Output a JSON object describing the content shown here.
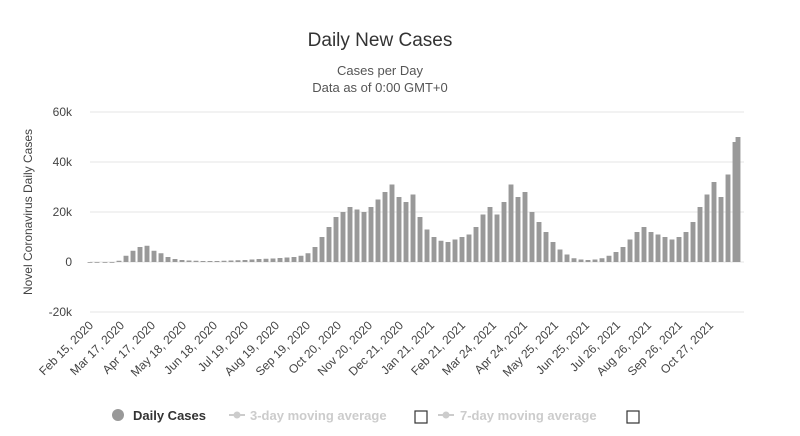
{
  "colors": {
    "bar": "#999999",
    "grid": "#e6e6e6",
    "x_axis": "#ccd6eb",
    "legend_active": "#333333",
    "legend_inactive": "#cccccc"
  },
  "chart_data": {
    "type": "bar",
    "title": "Daily New Cases",
    "subtitle_lines": [
      "Cases per Day",
      "Data as of 0:00 GMT+0"
    ],
    "ylabel": "Novel Coronavirus Daily Cases",
    "xlabel": "",
    "ylim": [
      -20000,
      60000
    ],
    "y_ticks": [
      60000,
      40000,
      20000,
      0,
      -20000
    ],
    "y_tick_labels": [
      "60k",
      "40k",
      "20k",
      "0",
      "-20k"
    ],
    "x_start": "2020-02-15",
    "x_end": "2021-11-30",
    "x_ticks": [
      "2020-02-15",
      "2020-03-17",
      "2020-04-17",
      "2020-05-18",
      "2020-06-18",
      "2020-07-19",
      "2020-08-19",
      "2020-09-19",
      "2020-10-20",
      "2020-11-20",
      "2020-12-21",
      "2021-01-21",
      "2021-02-21",
      "2021-03-24",
      "2021-04-24",
      "2021-05-25",
      "2021-06-25",
      "2021-07-26",
      "2021-08-26",
      "2021-09-26",
      "2021-10-27"
    ],
    "x_tick_labels": [
      "Feb 15, 2020",
      "Mar 17, 2020",
      "Apr 17, 2020",
      "May 18, 2020",
      "Jun 18, 2020",
      "Jul 19, 2020",
      "Aug 19, 2020",
      "Sep 19, 2020",
      "Oct 20, 2020",
      "Nov 20, 2020",
      "Dec 21, 2020",
      "Jan 21, 2021",
      "Feb 21, 2021",
      "Mar 24, 2021",
      "Apr 24, 2021",
      "May 25, 2021",
      "Jun 25, 2021",
      "Jul 26, 2021",
      "Aug 26, 2021",
      "Sep 26, 2021",
      "Oct 27, 2021"
    ],
    "grid": true,
    "legend_position": "bottom",
    "series": [
      {
        "name": "Daily Cases",
        "x": [
          "2020-02-15",
          "2020-02-22",
          "2020-03-01",
          "2020-03-08",
          "2020-03-15",
          "2020-03-22",
          "2020-03-29",
          "2020-04-05",
          "2020-04-12",
          "2020-04-19",
          "2020-04-26",
          "2020-05-03",
          "2020-05-10",
          "2020-05-17",
          "2020-05-24",
          "2020-05-31",
          "2020-06-07",
          "2020-06-14",
          "2020-06-21",
          "2020-06-28",
          "2020-07-05",
          "2020-07-12",
          "2020-07-19",
          "2020-07-26",
          "2020-08-02",
          "2020-08-09",
          "2020-08-16",
          "2020-08-23",
          "2020-08-30",
          "2020-09-06",
          "2020-09-13",
          "2020-09-20",
          "2020-09-27",
          "2020-10-04",
          "2020-10-11",
          "2020-10-18",
          "2020-10-25",
          "2020-11-01",
          "2020-11-08",
          "2020-11-15",
          "2020-11-22",
          "2020-11-29",
          "2020-12-06",
          "2020-12-13",
          "2020-12-20",
          "2020-12-27",
          "2021-01-03",
          "2021-01-10",
          "2021-01-17",
          "2021-01-24",
          "2021-01-31",
          "2021-02-07",
          "2021-02-14",
          "2021-02-21",
          "2021-02-28",
          "2021-03-07",
          "2021-03-14",
          "2021-03-21",
          "2021-03-28",
          "2021-04-04",
          "2021-04-11",
          "2021-04-18",
          "2021-04-25",
          "2021-05-02",
          "2021-05-09",
          "2021-05-16",
          "2021-05-23",
          "2021-05-30",
          "2021-06-06",
          "2021-06-13",
          "2021-06-20",
          "2021-06-27",
          "2021-07-04",
          "2021-07-11",
          "2021-07-18",
          "2021-07-25",
          "2021-08-01",
          "2021-08-08",
          "2021-08-15",
          "2021-08-22",
          "2021-08-29",
          "2021-09-05",
          "2021-09-12",
          "2021-09-19",
          "2021-09-26",
          "2021-10-03",
          "2021-10-10",
          "2021-10-17",
          "2021-10-24",
          "2021-10-31",
          "2021-11-07",
          "2021-11-14",
          "2021-11-21",
          "2021-11-24"
        ],
        "values": [
          0,
          0,
          0,
          0,
          500,
          2500,
          4500,
          6000,
          6500,
          4500,
          3500,
          2000,
          1200,
          800,
          600,
          500,
          400,
          400,
          400,
          500,
          600,
          700,
          800,
          1000,
          1200,
          1300,
          1400,
          1600,
          1800,
          2000,
          2500,
          3500,
          6000,
          10000,
          14000,
          18000,
          20000,
          22000,
          21000,
          20000,
          22000,
          25000,
          28000,
          31000,
          26000,
          24000,
          27000,
          18000,
          13000,
          10000,
          8500,
          8000,
          9000,
          10000,
          11000,
          14000,
          19000,
          22000,
          19000,
          24000,
          31000,
          26000,
          28000,
          20000,
          16000,
          12000,
          8000,
          5000,
          3000,
          1500,
          1000,
          800,
          1000,
          1500,
          2500,
          4000,
          6000,
          9000,
          12000,
          14000,
          12000,
          11000,
          10000,
          9000,
          10000,
          12000,
          16000,
          22000,
          27000,
          32000,
          26000,
          35000,
          48000,
          50000
        ]
      },
      {
        "name": "3-day moving average",
        "values": []
      },
      {
        "name": "7-day moving average",
        "values": []
      }
    ]
  }
}
